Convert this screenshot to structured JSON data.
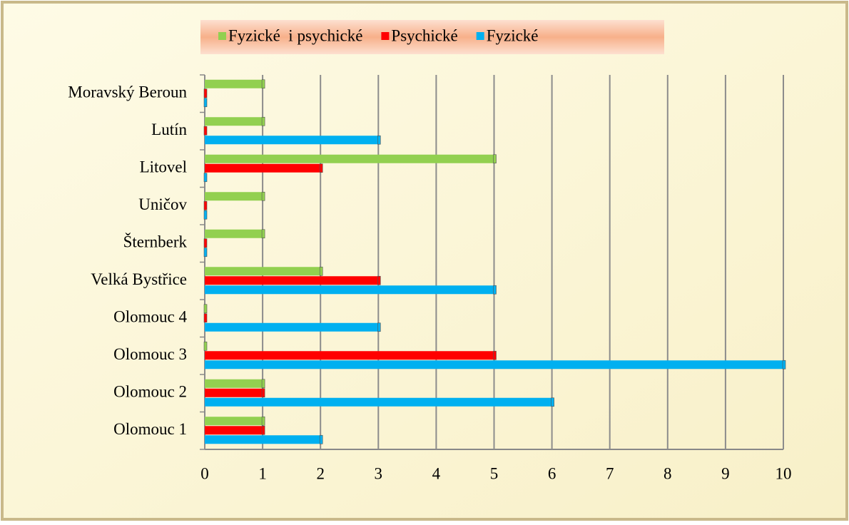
{
  "chart_data": {
    "type": "hbar",
    "categories": [
      "Olomouc 1",
      "Olomouc 2",
      "Olomouc 3",
      "Olomouc 4",
      "Velká Bystřice",
      "Šternberk",
      "Uničov",
      "Litovel",
      "Lutín",
      "Moravský Beroun"
    ],
    "series": [
      {
        "name": "Fyzické  i psychické",
        "color": "#92d050",
        "values": [
          1,
          1,
          0,
          0,
          2,
          1,
          1,
          5,
          1,
          1
        ]
      },
      {
        "name": "Psychické",
        "color": "#ff0000",
        "values": [
          1,
          1,
          5,
          0,
          3,
          0,
          0,
          2,
          0,
          0
        ]
      },
      {
        "name": "Fyzické",
        "color": "#00b0f0",
        "values": [
          2,
          6,
          10,
          3,
          5,
          0,
          0,
          0,
          3,
          0
        ]
      }
    ],
    "xlim": [
      0,
      10
    ],
    "xticks": [
      0,
      1,
      2,
      3,
      4,
      5,
      6,
      7,
      8,
      9,
      10
    ],
    "grid": true,
    "legend": "top"
  }
}
